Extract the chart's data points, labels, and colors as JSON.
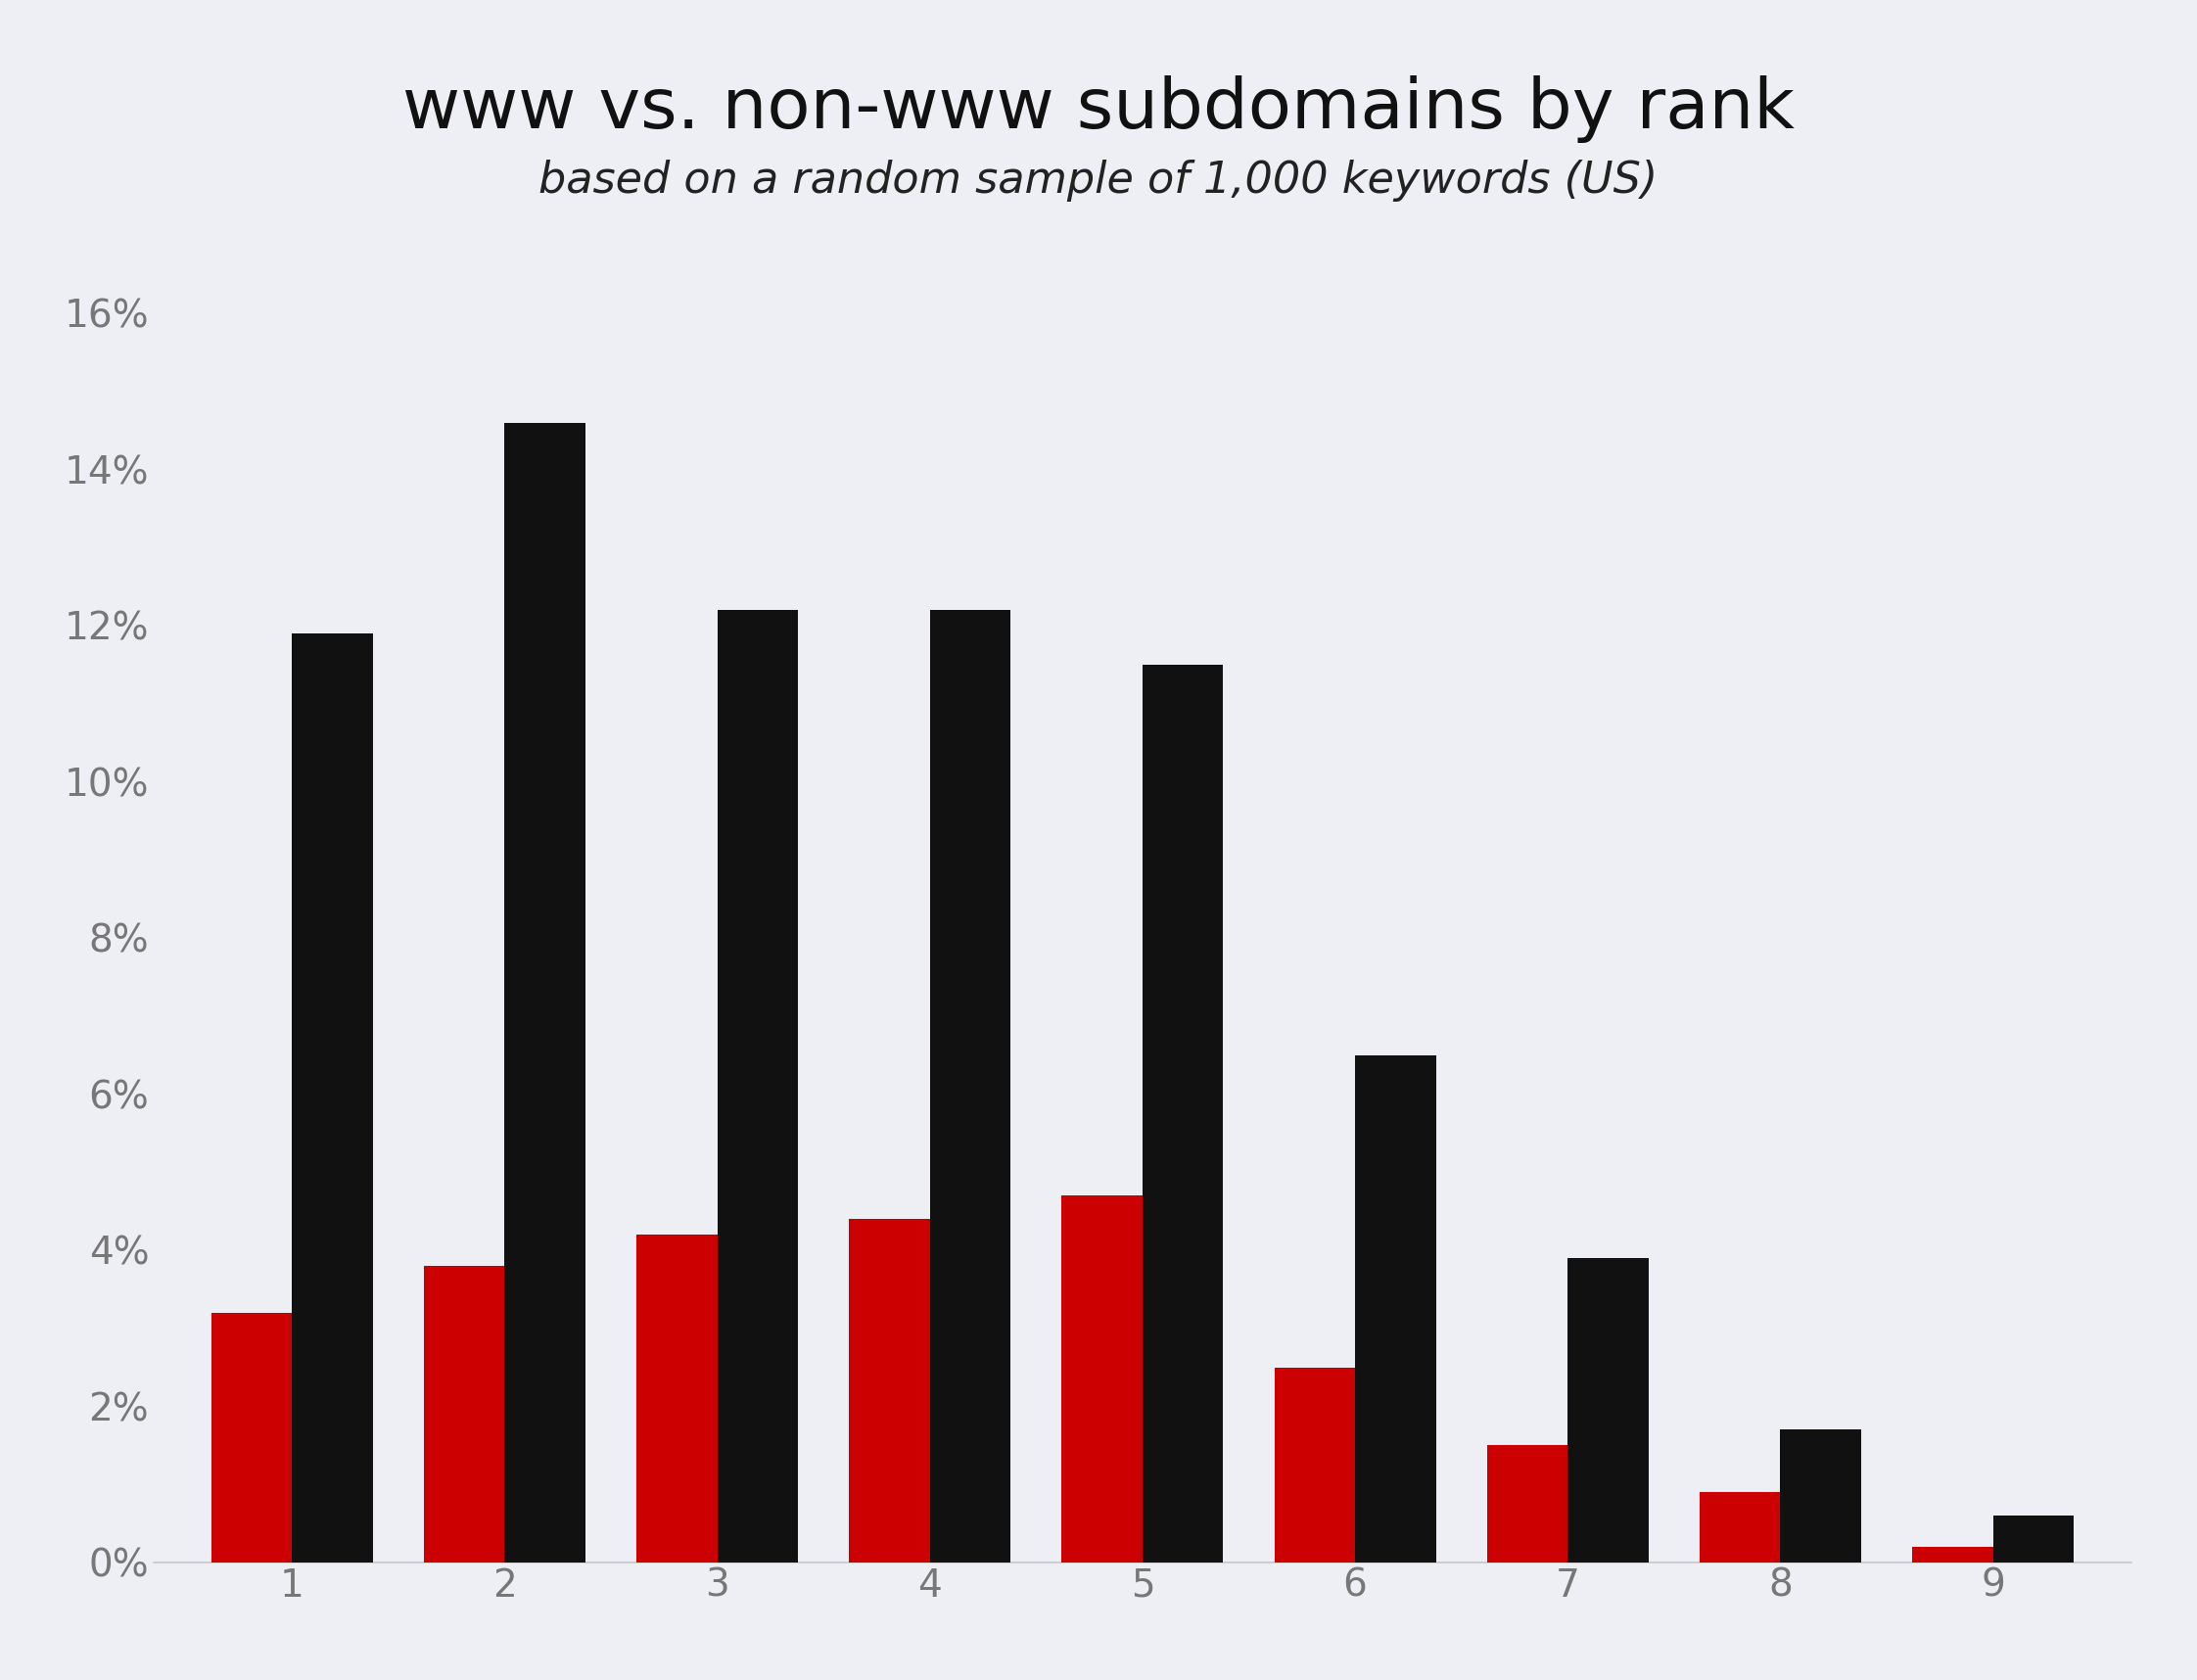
{
  "title": "www vs. non-www subdomains by rank",
  "subtitle": "based on a random sample of 1,000 keywords (US)",
  "categories": [
    1,
    2,
    3,
    4,
    5,
    6,
    7,
    8,
    9
  ],
  "www_values": [
    0.032,
    0.038,
    0.042,
    0.044,
    0.047,
    0.025,
    0.015,
    0.009,
    0.002
  ],
  "non_www_values": [
    0.119,
    0.146,
    0.122,
    0.122,
    0.115,
    0.065,
    0.039,
    0.017,
    0.006
  ],
  "www_color": "#cc0000",
  "non_www_color": "#111111",
  "background_color": "#eeeef5",
  "ylim": [
    0,
    0.17
  ],
  "ytick_values": [
    0.0,
    0.02,
    0.04,
    0.06,
    0.08,
    0.1,
    0.12,
    0.14,
    0.16
  ],
  "title_fontsize": 52,
  "subtitle_fontsize": 32,
  "tick_fontsize": 28,
  "bar_width": 0.38,
  "tick_color": "#777777",
  "title_color": "#111111",
  "subtitle_color": "#222222"
}
